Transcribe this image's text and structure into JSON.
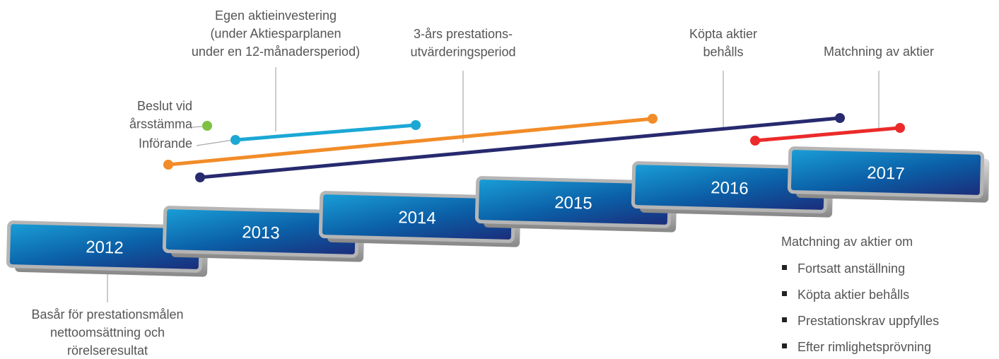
{
  "years": [
    "2012",
    "2013",
    "2014",
    "2015",
    "2016",
    "2017"
  ],
  "annotations": {
    "own_investment": [
      "Egen aktieinvestering",
      "(under Aktiesparplanen",
      "under en 12-månadersperiod)"
    ],
    "performance_period": [
      "3-års prestations-",
      "utvärderingsperiod"
    ],
    "shares_kept": [
      "Köpta aktier",
      "behålls"
    ],
    "matching": [
      "Matchning av aktier"
    ],
    "decision": [
      "Beslut vid",
      "årsstämma"
    ],
    "introduction": [
      "Införande"
    ],
    "base_year": [
      "Basår för prestationsmålen",
      "nettoomsättning och",
      "rörelseresultat"
    ]
  },
  "conditions": {
    "title": "Matchning av aktier om",
    "items": [
      "Fortsatt anställning",
      "Köpta aktier behålls",
      "Prestationskrav uppfylles",
      "Efter rimlighetsprövning"
    ]
  }
}
